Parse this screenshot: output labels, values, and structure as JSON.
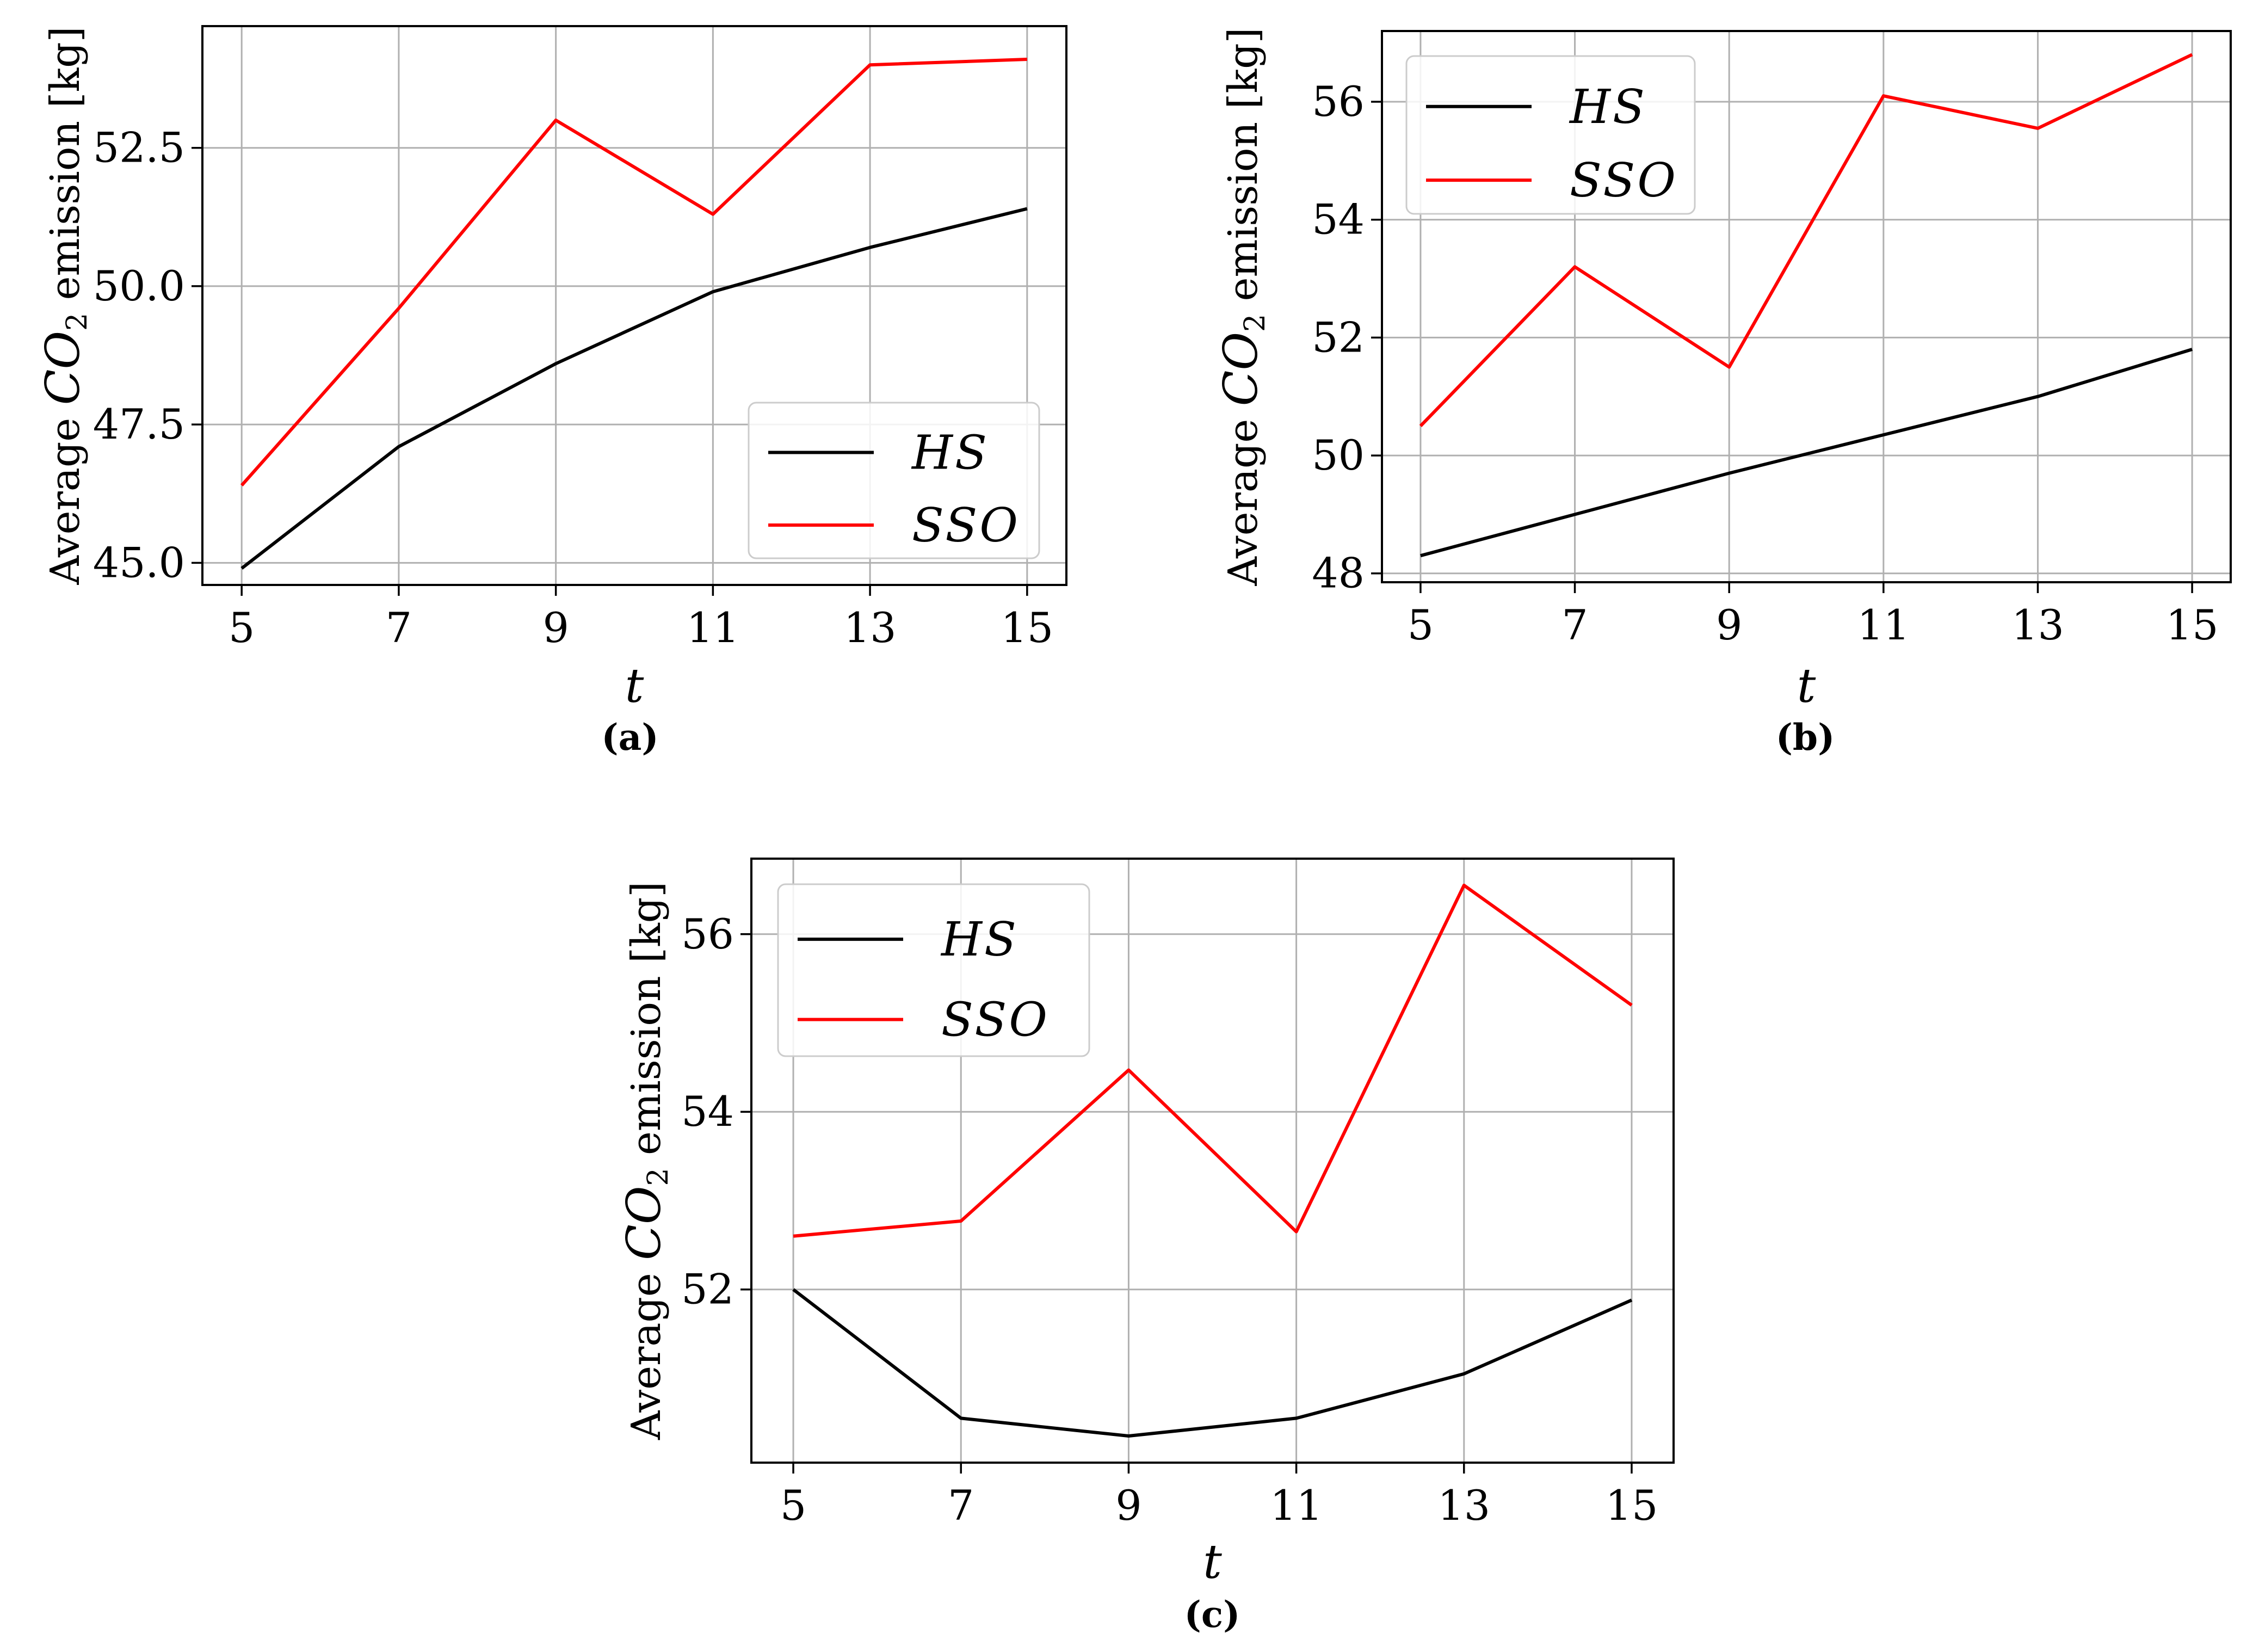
{
  "chart_data": [
    {
      "id": "a",
      "type": "line",
      "caption": "(a)",
      "xlabel": "t",
      "ylabel": "Average CO2 emission [kg]",
      "ylabel_parts": {
        "before": "Average ",
        "symbol": "CO",
        "subscript": "2",
        "after": " emission [kg]"
      },
      "x": [
        5,
        7,
        9,
        11,
        13,
        15
      ],
      "xlim": [
        4.5,
        15.5
      ],
      "ylim": [
        44.6,
        54.7
      ],
      "xticks": [
        5,
        7,
        9,
        11,
        13,
        15
      ],
      "xtick_labels": [
        "5",
        "7",
        "9",
        "11",
        "13",
        "15"
      ],
      "yticks": [
        45.0,
        47.5,
        50.0,
        52.5
      ],
      "ytick_labels": [
        "45.0",
        "47.5",
        "50.0",
        "52.5"
      ],
      "grid": true,
      "legend_position": "lower-right",
      "series": [
        {
          "name": "HS",
          "color": "#000000",
          "values": [
            44.9,
            47.1,
            48.6,
            49.9,
            50.7,
            51.4
          ]
        },
        {
          "name": "SSO",
          "color": "#ff0000",
          "values": [
            46.4,
            49.6,
            53.0,
            51.3,
            54.0,
            54.1
          ]
        }
      ]
    },
    {
      "id": "b",
      "type": "line",
      "caption": "(b)",
      "xlabel": "t",
      "ylabel": "Average CO2 emission [kg]",
      "ylabel_parts": {
        "before": "Average ",
        "symbol": "CO",
        "subscript": "2",
        "after": " emission [kg]"
      },
      "x": [
        5,
        7,
        9,
        11,
        13,
        15
      ],
      "xlim": [
        4.5,
        15.5
      ],
      "ylim": [
        47.85,
        57.2
      ],
      "xticks": [
        5,
        7,
        9,
        11,
        13,
        15
      ],
      "xtick_labels": [
        "5",
        "7",
        "9",
        "11",
        "13",
        "15"
      ],
      "yticks": [
        48,
        50,
        52,
        54,
        56
      ],
      "ytick_labels": [
        "48",
        "50",
        "52",
        "54",
        "56"
      ],
      "grid": true,
      "legend_position": "top-left",
      "series": [
        {
          "name": "HS",
          "color": "#000000",
          "values": [
            48.3,
            49.0,
            49.7,
            50.35,
            51.0,
            51.8
          ]
        },
        {
          "name": "SSO",
          "color": "#ff0000",
          "values": [
            50.5,
            53.2,
            51.5,
            56.1,
            55.55,
            56.8
          ]
        }
      ]
    },
    {
      "id": "c",
      "type": "line",
      "caption": "(c)",
      "xlabel": "t",
      "ylabel": "Average CO2 emission [kg]",
      "ylabel_parts": {
        "before": "Average ",
        "symbol": "CO",
        "subscript": "2",
        "after": " emission [kg]"
      },
      "x": [
        5,
        7,
        9,
        11,
        13,
        15
      ],
      "xlim": [
        4.5,
        15.5
      ],
      "ylim": [
        50.05,
        56.85
      ],
      "xticks": [
        5,
        7,
        9,
        11,
        13,
        15
      ],
      "xtick_labels": [
        "5",
        "7",
        "9",
        "11",
        "13",
        "15"
      ],
      "yticks": [
        52,
        54,
        56
      ],
      "ytick_labels": [
        "52",
        "54",
        "56"
      ],
      "grid": true,
      "legend_position": "top-left",
      "series": [
        {
          "name": "HS",
          "color": "#000000",
          "values": [
            52.0,
            50.55,
            50.35,
            50.55,
            51.05,
            51.88
          ]
        },
        {
          "name": "SSO",
          "color": "#ff0000",
          "values": [
            52.6,
            52.77,
            54.47,
            52.65,
            56.55,
            55.2
          ]
        }
      ]
    }
  ]
}
